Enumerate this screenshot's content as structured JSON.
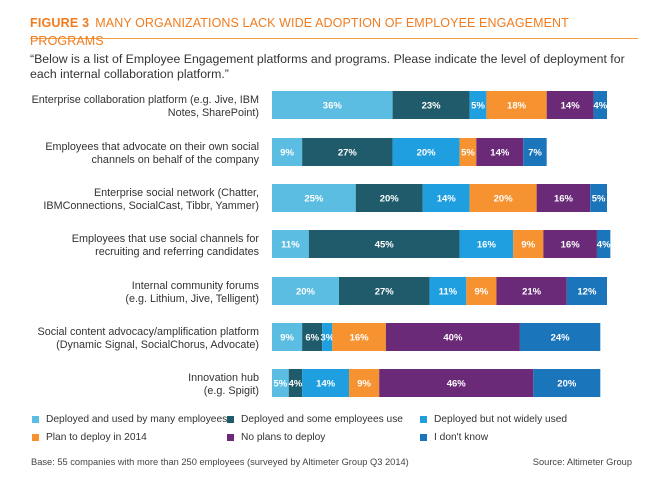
{
  "header": {
    "figure_label": "FIGURE 3",
    "title": "MANY ORGANIZATIONS LACK WIDE ADOPTION OF EMPLOYEE ENGAGEMENT PROGRAMS"
  },
  "question": "“Below is a list of Employee Engagement platforms and programs. Please indicate the level of deployment for each internal collaboration platform.”",
  "chart_data": {
    "type": "bar",
    "orientation": "horizontal",
    "stacked": true,
    "unit": "%",
    "categories": [
      [
        "Enterprise collaboration platform (e.g. Jive, IBM",
        "Notes, SharePoint)"
      ],
      [
        "Employees that advocate on their own social",
        "channels on behalf of the company"
      ],
      [
        "Enterprise social network (Chatter,",
        "IBMConnections, SocialCast, Tibbr, Yammer)"
      ],
      [
        "Employees that use social channels for",
        "recruiting and referring candidates"
      ],
      [
        "Internal community forums",
        "(e.g. Lithium, Jive, Telligent)"
      ],
      [
        "Social content advocacy/amplification platform",
        "(Dynamic Signal, SocialChorus, Advocate)"
      ],
      [
        "Innovation hub",
        "(e.g. Spigit)"
      ]
    ],
    "series": [
      {
        "name": "Deployed and used by many employees",
        "color": "#5bbde2",
        "values": [
          36,
          9,
          25,
          11,
          20,
          9,
          5
        ]
      },
      {
        "name": "Deployed and some employees use",
        "color": "#1f5b6b",
        "values": [
          23,
          27,
          20,
          45,
          27,
          6,
          4
        ]
      },
      {
        "name": "Deployed but not widely used",
        "color": "#1f9fe0",
        "values": [
          5,
          20,
          14,
          16,
          11,
          3,
          14
        ]
      },
      {
        "name": "Plan to deploy in 2014",
        "color": "#f6922f",
        "values": [
          18,
          5,
          20,
          9,
          9,
          16,
          9
        ]
      },
      {
        "name": "No plans to deploy",
        "color": "#6a2a78",
        "values": [
          14,
          14,
          16,
          16,
          21,
          40,
          46
        ]
      },
      {
        "name": "I don't know",
        "color": "#1b75bb",
        "values": [
          4,
          7,
          5,
          4,
          12,
          24,
          20
        ]
      }
    ],
    "xlim": [
      0,
      100
    ]
  },
  "footer": {
    "base": "Base: 55 companies with more than 250 employees  (surveyed by Altimeter Group Q3 2014)",
    "source": "Source: Altimeter Group"
  }
}
